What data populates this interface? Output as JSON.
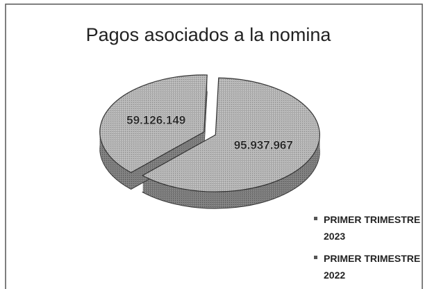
{
  "chart_data": {
    "type": "pie",
    "title": "Pagos asociados a la nomina",
    "categories": [
      "PRIMER TRIMESTRE 2023",
      "PRIMER TRIMESTRE 2022"
    ],
    "values": [
      95937967,
      59126149
    ],
    "value_labels": [
      "95.937.967",
      "59.126.149"
    ],
    "colors": [
      "#b4b4b4",
      "#b4b4b4"
    ],
    "legend": "right"
  }
}
